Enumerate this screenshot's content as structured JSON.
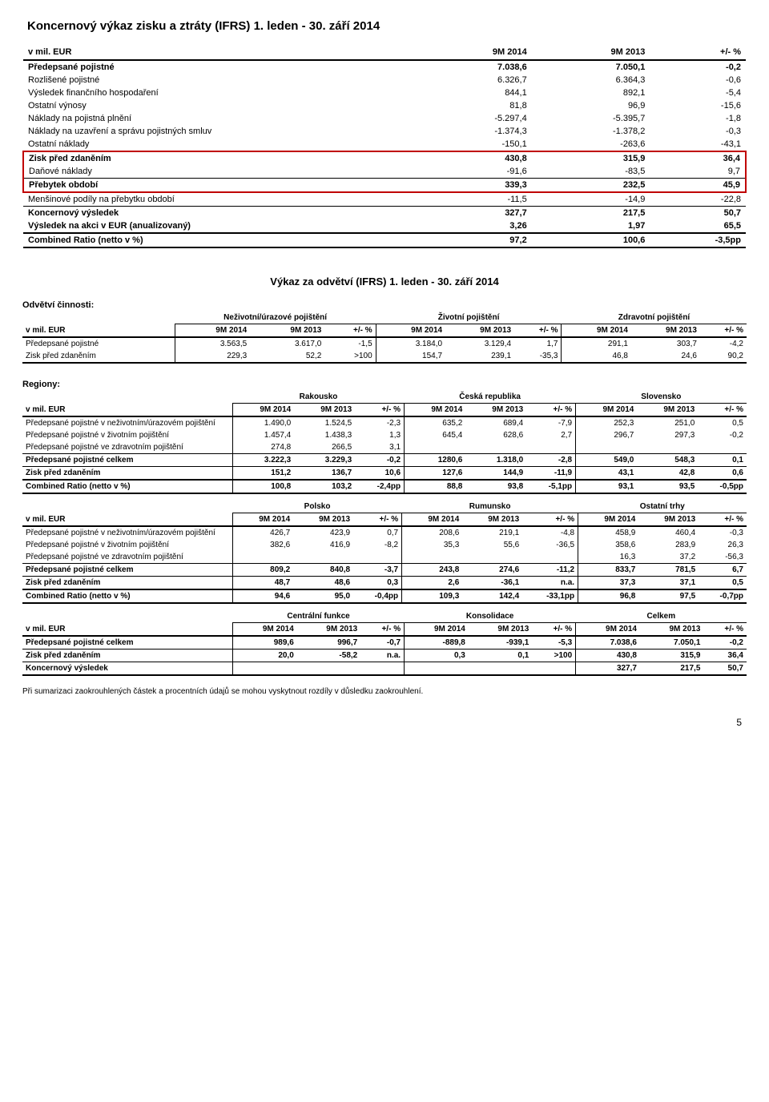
{
  "title": "Koncernový výkaz zisku a ztráty  (IFRS) 1. leden - 30. září  2014",
  "main_table": {
    "header": [
      "v mil. EUR",
      "9M 2014",
      "9M 2013",
      "+/- %"
    ],
    "rows": [
      {
        "label": "Předepsané pojistné",
        "v": [
          "7.038,6",
          "7.050,1",
          "-0,2"
        ],
        "bold": true,
        "thick_top": false
      },
      {
        "label": "Rozlišené pojistné",
        "v": [
          "6.326,7",
          "6.364,3",
          "-0,6"
        ]
      },
      {
        "label": "Výsledek finančního hospodaření",
        "v": [
          "844,1",
          "892,1",
          "-5,4"
        ]
      },
      {
        "label": "Ostatní výnosy",
        "v": [
          "81,8",
          "96,9",
          "-15,6"
        ]
      },
      {
        "label": "Náklady na pojistná plnění",
        "v": [
          "-5.297,4",
          "-5.395,7",
          "-1,8"
        ]
      },
      {
        "label": "Náklady na uzavření a správu pojistných smluv",
        "v": [
          "-1.374,3",
          "-1.378,2",
          "-0,3"
        ]
      },
      {
        "label": "Ostatní náklady",
        "v": [
          "-150,1",
          "-263,6",
          "-43,1"
        ],
        "thin_bottom": true
      },
      {
        "label": "Zisk před zdaněním",
        "v": [
          "430,8",
          "315,9",
          "36,4"
        ],
        "bold": true,
        "hl": "top"
      },
      {
        "label": "Daňové náklady",
        "v": [
          "-91,6",
          "-83,5",
          "9,7"
        ],
        "hl": "mid",
        "thin_bottom": true
      },
      {
        "label": "Přebytek období",
        "v": [
          "339,3",
          "232,5",
          "45,9"
        ],
        "bold": true,
        "hl": "bot"
      },
      {
        "label": "Menšinové podíly na přebytku období",
        "v": [
          "-11,5",
          "-14,9",
          "-22,8"
        ],
        "thin_bottom": true
      },
      {
        "label": "Koncernový výsledek",
        "v": [
          "327,7",
          "217,5",
          "50,7"
        ],
        "bold": true
      },
      {
        "label": "Výsledek na akci v EUR (anualizovaný)",
        "v": [
          "3,26",
          "1,97",
          "65,5"
        ],
        "bold": true
      },
      {
        "label": "Combined Ratio (netto v %)",
        "v": [
          "97,2",
          "100,6",
          "-3,5pp"
        ],
        "bold": true,
        "thick_top": true,
        "thick_bottom": true
      }
    ]
  },
  "segments_title": "Výkaz za odvětví (IFRS) 1. leden - 30. září  2014",
  "segments_label": "Odvětví činnosti:",
  "seg1": {
    "groups": [
      "Neživotní/úrazové pojištění",
      "Životní pojištění",
      "Zdravotní pojištění"
    ],
    "sub": [
      "v mil. EUR",
      "9M 2014",
      "9M 2013",
      "+/- %",
      "9M 2014",
      "9M 2013",
      "+/- %",
      "9M 2014",
      "9M 2013",
      "+/- %"
    ],
    "rows": [
      {
        "label": "Předepsané pojistné",
        "v": [
          "3.563,5",
          "3.617,0",
          "-1,5",
          "3.184,0",
          "3.129,4",
          "1,7",
          "291,1",
          "303,7",
          "-4,2"
        ]
      },
      {
        "label": "Zisk před zdaněním",
        "v": [
          "229,3",
          "52,2",
          ">100",
          "154,7",
          "239,1",
          "-35,3",
          "46,8",
          "24,6",
          "90,2"
        ],
        "thick_bottom": true
      }
    ]
  },
  "regions_label": "Regiony:",
  "seg2a": {
    "groups": [
      "Rakousko",
      "Česká republika",
      "Slovensko"
    ],
    "sub": [
      "v mil. EUR",
      "9M 2014",
      "9M 2013",
      "+/- %",
      "9M 2014",
      "9M 2013",
      "+/- %",
      "9M 2014",
      "9M 2013",
      "+/- %"
    ],
    "rows": [
      {
        "label": "Předepsané pojistné v neživotním/úrazovém pojištění",
        "v": [
          "1.490,0",
          "1.524,5",
          "-2,3",
          "635,2",
          "689,4",
          "-7,9",
          "252,3",
          "251,0",
          "0,5"
        ]
      },
      {
        "label": "Předepsané pojistné v životním pojištění",
        "v": [
          "1.457,4",
          "1.438,3",
          "1,3",
          "645,4",
          "628,6",
          "2,7",
          "296,7",
          "297,3",
          "-0,2"
        ]
      },
      {
        "label": "Předepsané pojistné ve zdravotním pojištění",
        "v": [
          "274,8",
          "266,5",
          "3,1",
          "",
          "",
          "",
          "",
          "",
          ""
        ],
        "thin_bottom": true
      },
      {
        "label": "Předepsané pojistné celkem",
        "v": [
          "3.222,3",
          "3.229,3",
          "-0,2",
          "1280,6",
          "1.318,0",
          "-2,8",
          "549,0",
          "548,3",
          "0,1"
        ],
        "bold": true
      },
      {
        "label": "Zisk před zdaněním",
        "v": [
          "151,2",
          "136,7",
          "10,6",
          "127,6",
          "144,9",
          "-11,9",
          "43,1",
          "42,8",
          "0,6"
        ],
        "bold": true,
        "thin_top": true
      },
      {
        "label": "Combined Ratio (netto v %)",
        "v": [
          "100,8",
          "103,2",
          "-2,4pp",
          "88,8",
          "93,8",
          "-5,1pp",
          "93,1",
          "93,5",
          "-0,5pp"
        ],
        "bold": true,
        "thick_top": true,
        "thick_bottom": true
      }
    ]
  },
  "seg2b": {
    "groups": [
      "Polsko",
      "Rumunsko",
      "Ostatní trhy"
    ],
    "sub": [
      "v mil. EUR",
      "9M 2014",
      "9M 2013",
      "+/- %",
      "9M 2014",
      "9M 2013",
      "+/- %",
      "9M 2014",
      "9M 2013",
      "+/- %"
    ],
    "rows": [
      {
        "label": "Předepsané pojistné v neživotním/úrazovém pojištění",
        "v": [
          "426,7",
          "423,9",
          "0,7",
          "208,6",
          "219,1",
          "-4,8",
          "458,9",
          "460,4",
          "-0,3"
        ]
      },
      {
        "label": "Předepsané pojistné v životním pojištění",
        "v": [
          "382,6",
          "416,9",
          "-8,2",
          "35,3",
          "55,6",
          "-36,5",
          "358,6",
          "283,9",
          "26,3"
        ]
      },
      {
        "label": "Předepsané pojistné ve zdravotním pojištění",
        "v": [
          "",
          "",
          "",
          "",
          "",
          "",
          "16,3",
          "37,2",
          "-56,3"
        ],
        "thin_bottom": true
      },
      {
        "label": "Předepsané pojistné celkem",
        "v": [
          "809,2",
          "840,8",
          "-3,7",
          "243,8",
          "274,6",
          "-11,2",
          "833,7",
          "781,5",
          "6,7"
        ],
        "bold": true
      },
      {
        "label": "Zisk před zdaněním",
        "v": [
          "48,7",
          "48,6",
          "0,3",
          "2,6",
          "-36,1",
          "n.a.",
          "37,3",
          "37,1",
          "0,5"
        ],
        "bold": true,
        "thin_top": true
      },
      {
        "label": "Combined Ratio (netto v %)",
        "v": [
          "94,6",
          "95,0",
          "-0,4pp",
          "109,3",
          "142,4",
          "-33,1pp",
          "96,8",
          "97,5",
          "-0,7pp"
        ],
        "bold": true,
        "thick_top": true,
        "thick_bottom": true
      }
    ]
  },
  "seg2c": {
    "groups": [
      "Centrální funkce",
      "Konsolidace",
      "Celkem"
    ],
    "sub": [
      "v mil. EUR",
      "9M 2014",
      "9M 2013",
      "+/- %",
      "9M 2014",
      "9M 2013",
      "+/- %",
      "9M 2014",
      "9M 2013",
      "+/- %"
    ],
    "rows": [
      {
        "label": "Předepsané pojistné celkem",
        "v": [
          "989,6",
          "996,7",
          "-0,7",
          "-889,8",
          "-939,1",
          "-5,3",
          "7.038,6",
          "7.050,1",
          "-0,2"
        ],
        "bold": true
      },
      {
        "label": "Zisk před zdaněním",
        "v": [
          "20,0",
          "-58,2",
          "n.a.",
          "0,3",
          "0,1",
          ">100",
          "430,8",
          "315,9",
          "36,4"
        ],
        "bold": true,
        "thin_top": true,
        "thin_bottom": true
      },
      {
        "label": "Koncernový výsledek",
        "v": [
          "",
          "",
          "",
          "",
          "",
          "",
          "327,7",
          "217,5",
          "50,7"
        ],
        "bold": true,
        "thick_bottom": true
      }
    ]
  },
  "footnote": "Při sumarizaci zaokrouhlených částek a procentních údajů se mohou vyskytnout rozdíly v důsledku zaokrouhlení.",
  "page_number": "5"
}
